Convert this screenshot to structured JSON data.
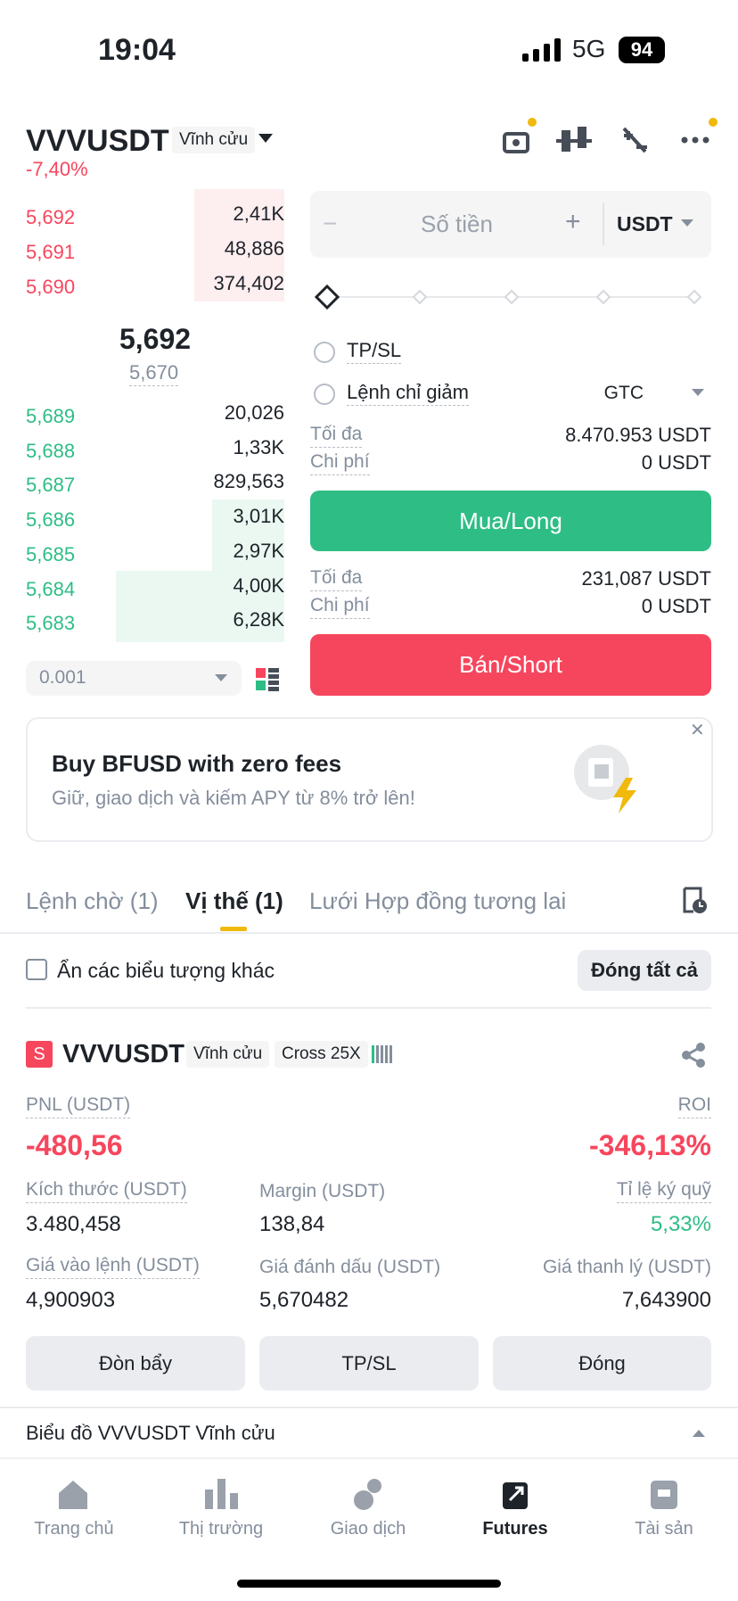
{
  "status_bar": {
    "time": "19:04",
    "network": "5G",
    "battery": "94"
  },
  "header": {
    "symbol": "VVVUSDT",
    "contract": "Vĩnh cửu",
    "change": "-7,40%"
  },
  "order_book": {
    "asks": [
      {
        "price": "5,692",
        "qty": "2,41K"
      },
      {
        "price": "5,691",
        "qty": "48,886"
      },
      {
        "price": "5,690",
        "qty": "374,402"
      }
    ],
    "last_price": "5,692",
    "mark_price": "5,670",
    "bids": [
      {
        "price": "5,689",
        "qty": "20,026"
      },
      {
        "price": "5,688",
        "qty": "1,33K"
      },
      {
        "price": "5,687",
        "qty": "829,563"
      },
      {
        "price": "5,686",
        "qty": "3,01K"
      },
      {
        "price": "5,685",
        "qty": "2,97K"
      },
      {
        "price": "5,684",
        "qty": "4,00K"
      },
      {
        "price": "5,683",
        "qty": "6,28K"
      }
    ],
    "tick_size": "0.001"
  },
  "order_form": {
    "amount_placeholder": "Số tiền",
    "currency": "USDT",
    "tpsl": "TP/SL",
    "reduce_only": "Lệnh chỉ giảm",
    "tif": "GTC",
    "buy": {
      "max_label": "Tối đa",
      "max": "8.470.953 USDT",
      "cost_label": "Chi phí",
      "cost": "0 USDT",
      "button": "Mua/Long"
    },
    "sell": {
      "max_label": "Tối đa",
      "max": "231,087 USDT",
      "cost_label": "Chi phí",
      "cost": "0 USDT",
      "button": "Bán/Short"
    }
  },
  "banner": {
    "title": "Buy BFUSD with zero fees",
    "subtitle": "Giữ, giao dịch và kiếm APY từ 8% trở lên!"
  },
  "tabs": [
    "Lệnh chờ (1)",
    "Vị thế (1)",
    "Lưới Hợp đồng tương lai"
  ],
  "filter": {
    "hide_others": "Ẩn các biểu tượng khác",
    "close_all": "Đóng tất cả"
  },
  "position": {
    "side": "S",
    "symbol": "VVVUSDT",
    "contract": "Vĩnh cửu",
    "margin_mode": "Cross 25X",
    "pnl_label": "PNL (USDT)",
    "pnl": "-480,56",
    "roi_label": "ROI",
    "roi": "-346,13%",
    "fields": [
      {
        "label": "Kích thước (USDT)",
        "value": "3.480,458"
      },
      {
        "label": "Margin (USDT)",
        "value": "138,84"
      },
      {
        "label": "Tỉ lệ ký quỹ",
        "value": "5,33%"
      },
      {
        "label": "Giá vào lệnh (USDT)",
        "value": "4,900903"
      },
      {
        "label": "Giá đánh dấu (USDT)",
        "value": "5,670482"
      },
      {
        "label": "Giá thanh lý (USDT)",
        "value": "7,643900"
      }
    ],
    "buttons": [
      "Đòn bẩy",
      "TP/SL",
      "Đóng"
    ]
  },
  "chart_toggle": "Biểu đồ VVVUSDT Vĩnh cửu",
  "nav": [
    "Trang chủ",
    "Thị trường",
    "Giao dịch",
    "Futures",
    "Tài sản"
  ]
}
